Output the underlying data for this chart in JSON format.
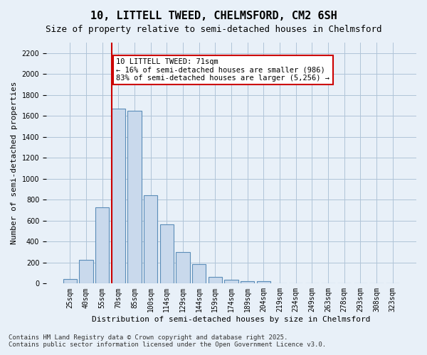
{
  "title_line1": "10, LITTELL TWEED, CHELMSFORD, CM2 6SH",
  "title_line2": "Size of property relative to semi-detached houses in Chelmsford",
  "xlabel": "Distribution of semi-detached houses by size in Chelmsford",
  "ylabel": "Number of semi-detached properties",
  "bar_color": "#c9d9ec",
  "bar_edge_color": "#5b8db8",
  "grid_color": "#b0c4d8",
  "bg_color": "#e8f0f8",
  "vline_value": 71,
  "vline_color": "#cc0000",
  "annotation_title": "10 LITTELL TWEED: 71sqm",
  "annotation_line1": "← 16% of semi-detached houses are smaller (986)",
  "annotation_line2": "83% of semi-detached houses are larger (5,256) →",
  "annotation_box_color": "#cc0000",
  "categories": [
    "25sqm",
    "40sqm",
    "55sqm",
    "70sqm",
    "85sqm",
    "100sqm",
    "114sqm",
    "129sqm",
    "144sqm",
    "159sqm",
    "174sqm",
    "189sqm",
    "204sqm",
    "219sqm",
    "234sqm",
    "249sqm",
    "263sqm",
    "278sqm",
    "293sqm",
    "308sqm",
    "323sqm"
  ],
  "values": [
    40,
    225,
    730,
    1670,
    1650,
    845,
    565,
    300,
    185,
    65,
    35,
    20,
    20,
    5,
    0,
    0,
    0,
    0,
    0,
    0,
    0
  ],
  "ylim": [
    0,
    2300
  ],
  "yticks": [
    0,
    200,
    400,
    600,
    800,
    1000,
    1200,
    1400,
    1600,
    1800,
    2000,
    2200
  ],
  "footer_line1": "Contains HM Land Registry data © Crown copyright and database right 2025.",
  "footer_line2": "Contains public sector information licensed under the Open Government Licence v3.0.",
  "title_fontsize": 11,
  "subtitle_fontsize": 9,
  "axis_label_fontsize": 8,
  "tick_fontsize": 7,
  "footer_fontsize": 6.5,
  "annotation_fontsize": 7.5
}
